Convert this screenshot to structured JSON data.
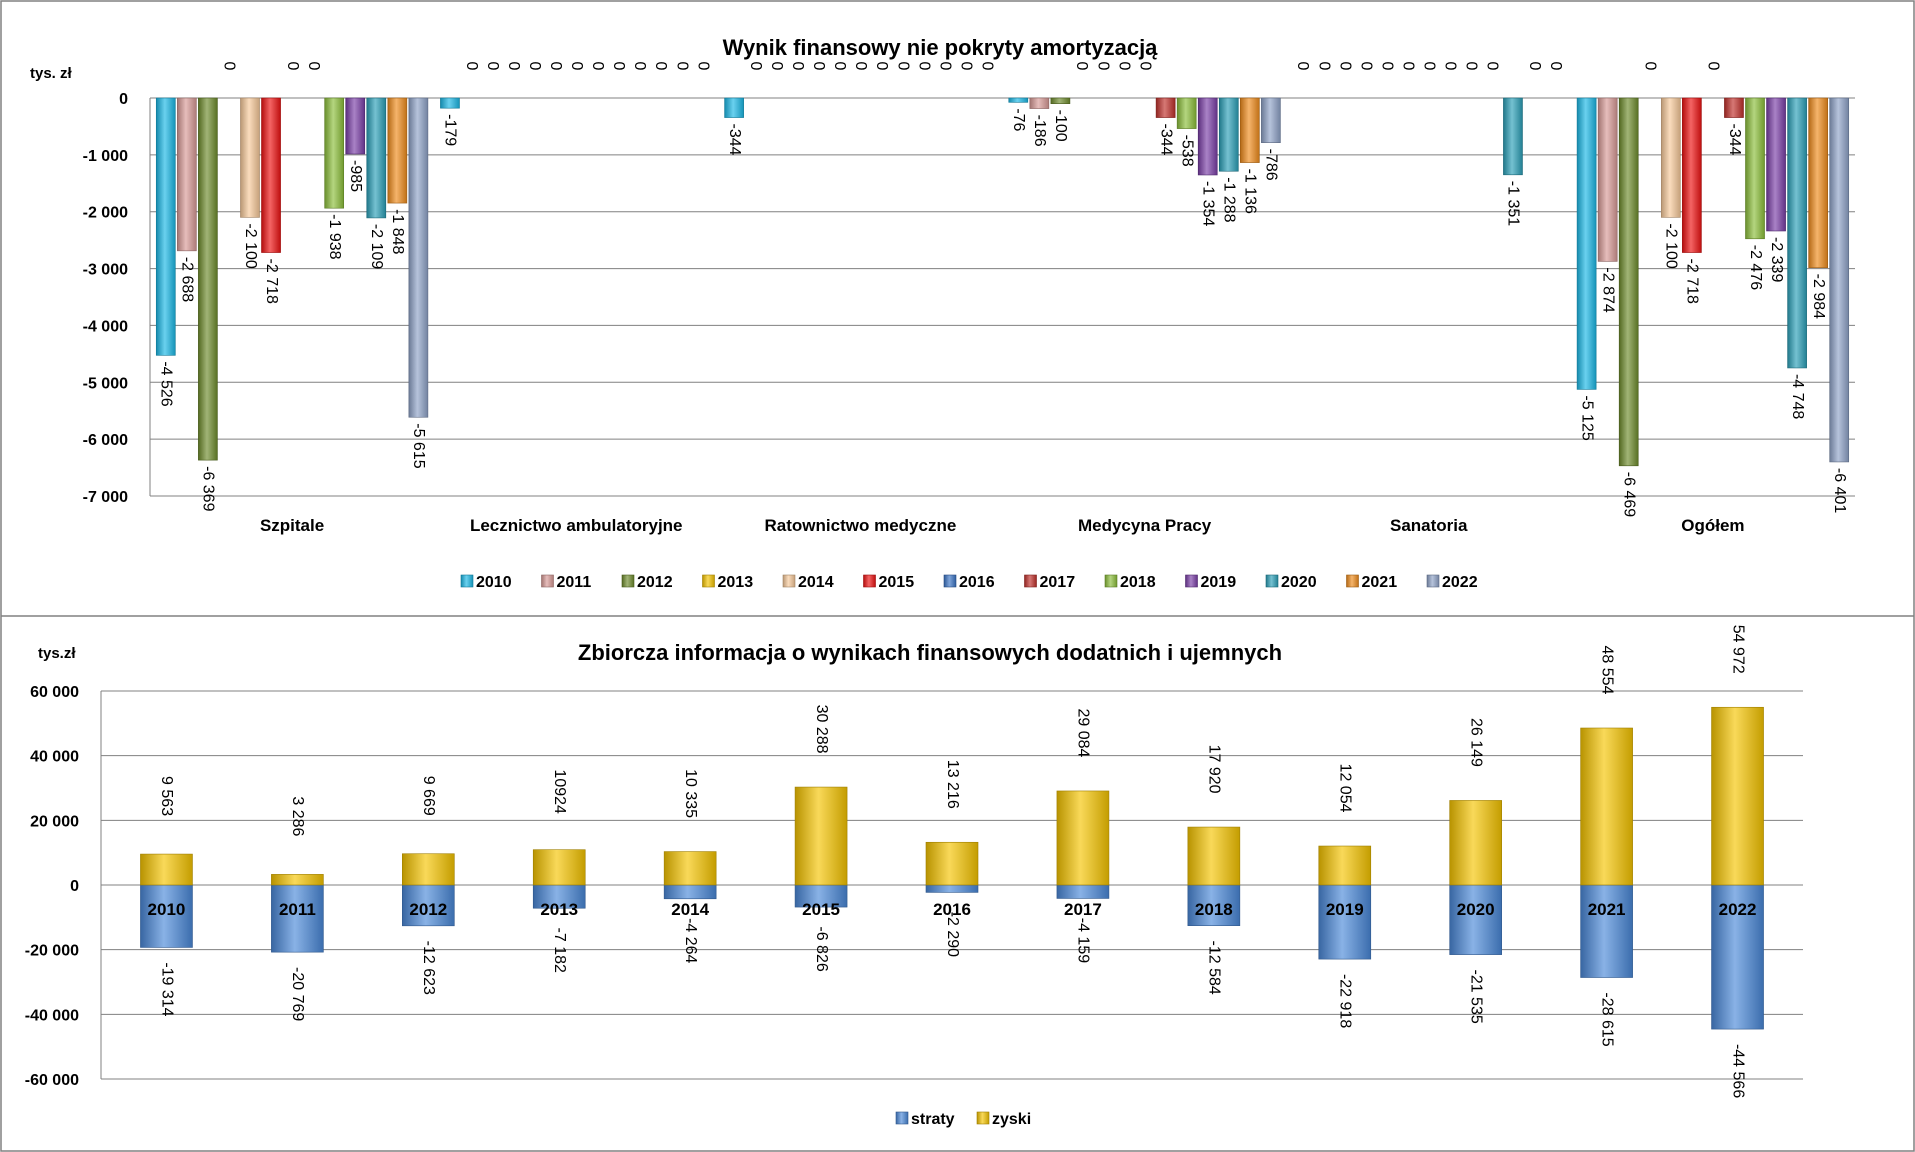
{
  "chart_data": [
    {
      "type": "bar",
      "title": "Wynik finansowy nie pokryty amortyzacją",
      "ylabel": "tys. zł",
      "ylim": [
        -7000,
        0
      ],
      "ytick_step": 1000,
      "grid": true,
      "legend_position": "bottom",
      "categories": [
        "Szpitale",
        "Lecznictwo ambulatoryjne",
        "Ratownictwo medyczne",
        "Medycyna Pracy",
        "Sanatoria",
        "Ogółem"
      ],
      "series": [
        {
          "name": "2010",
          "color": "#1ab8e6",
          "values": [
            -4526,
            -179,
            -344,
            -76,
            0,
            -5125
          ],
          "labels": [
            "-4 526",
            "-179",
            "-344",
            "-76",
            "0",
            "-5 125"
          ]
        },
        {
          "name": "2011",
          "color": "#d89a96",
          "values": [
            -2688,
            0,
            0,
            -186,
            0,
            -2874
          ],
          "labels": [
            "-2 688",
            "0",
            "0",
            "-186",
            "0",
            "-2 874"
          ]
        },
        {
          "name": "2012",
          "color": "#6e8c2c",
          "values": [
            -6369,
            0,
            0,
            -100,
            0,
            -6469
          ],
          "labels": [
            "-6 369",
            "0",
            "0",
            "-100",
            "0",
            "-6 469"
          ]
        },
        {
          "name": "2013",
          "color": "#f5c400",
          "values": [
            0,
            0,
            0,
            0,
            0,
            0
          ],
          "labels": [
            "0",
            "0",
            "0",
            "0",
            "0",
            "0"
          ]
        },
        {
          "name": "2014",
          "color": "#f7c99a",
          "values": [
            -2100,
            0,
            0,
            0,
            0,
            -2100
          ],
          "labels": [
            "-2 100",
            "0",
            "0",
            "0",
            "0",
            "-2 100"
          ]
        },
        {
          "name": "2015",
          "color": "#ee1111",
          "values": [
            -2718,
            0,
            0,
            0,
            0,
            -2718
          ],
          "labels": [
            "-2 718",
            "0",
            "0",
            "0",
            "0",
            "-2 718"
          ]
        },
        {
          "name": "2016",
          "color": "#3a74c6",
          "values": [
            0,
            0,
            0,
            0,
            0,
            0
          ],
          "labels": [
            "0",
            "0",
            "0",
            "0",
            "0",
            "0"
          ]
        },
        {
          "name": "2017",
          "color": "#c0302a",
          "values": [
            0,
            0,
            0,
            -344,
            0,
            -344
          ],
          "labels": [
            "0",
            "0",
            "0",
            "-344",
            "0",
            "-344"
          ]
        },
        {
          "name": "2018",
          "color": "#8cbf3a",
          "values": [
            -1938,
            0,
            0,
            -538,
            0,
            -2476
          ],
          "labels": [
            "-1 938",
            "0",
            "0",
            "-538",
            "0",
            "-2 476"
          ]
        },
        {
          "name": "2019",
          "color": "#7a3fa8",
          "values": [
            -985,
            0,
            0,
            -1354,
            0,
            -2339
          ],
          "labels": [
            "-985",
            "0",
            "0",
            "-1 354",
            "0",
            "-2 339"
          ]
        },
        {
          "name": "2020",
          "color": "#2aa0b8",
          "values": [
            -2109,
            0,
            0,
            -1288,
            -1351,
            -4748
          ],
          "labels": [
            "-2 109",
            "0",
            "0",
            "-1 288",
            "-1 351",
            "-4 748"
          ]
        },
        {
          "name": "2021",
          "color": "#f08c1c",
          "values": [
            -1848,
            0,
            0,
            -1136,
            0,
            -2984
          ],
          "labels": [
            "-1 848",
            "0",
            "0",
            "-1 136",
            "0",
            "-2 984"
          ]
        },
        {
          "name": "2022",
          "color": "#8ea2c8",
          "values": [
            -5615,
            0,
            0,
            -786,
            0,
            -6401
          ],
          "labels": [
            "-5 615",
            "0",
            "0",
            "-786",
            "0",
            "-6 401"
          ]
        }
      ]
    },
    {
      "type": "bar",
      "title": "Zbiorcza informacja o wynikach finansowych dodatnich i ujemnych",
      "ylabel": "tys.zł",
      "ylim": [
        -60000,
        60000
      ],
      "ytick_step": 20000,
      "grid": true,
      "stacked": true,
      "legend_position": "bottom",
      "categories": [
        "2010",
        "2011",
        "2012",
        "2013",
        "2014",
        "2015",
        "2016",
        "2017",
        "2018",
        "2019",
        "2020",
        "2021",
        "2022"
      ],
      "series": [
        {
          "name": "straty",
          "color": "#4a88d8",
          "values": [
            -19314,
            -20769,
            -12623,
            -7182,
            -4264,
            -6826,
            -2290,
            -4159,
            -12584,
            -22918,
            -21535,
            -28615,
            -44566
          ],
          "labels": [
            "-19 314",
            "-20 769",
            "-12 623",
            "-7 182",
            "-4 264",
            "-6 826",
            "-2 290",
            "-4 159",
            "-12 584",
            "-22 918",
            "-21 535",
            "-28 615",
            "-44 566"
          ]
        },
        {
          "name": "zyski",
          "color": "#f5c400",
          "values": [
            9563,
            3286,
            9669,
            10924,
            10335,
            30288,
            13216,
            29084,
            17920,
            12054,
            26149,
            48554,
            54972
          ],
          "labels": [
            "9 563",
            "3 286",
            "9 669",
            "10924",
            "10 335",
            "30 288",
            "13 216",
            "29 084",
            "17 920",
            "12 054",
            "26 149",
            "48 554",
            "54 972"
          ]
        }
      ]
    }
  ]
}
